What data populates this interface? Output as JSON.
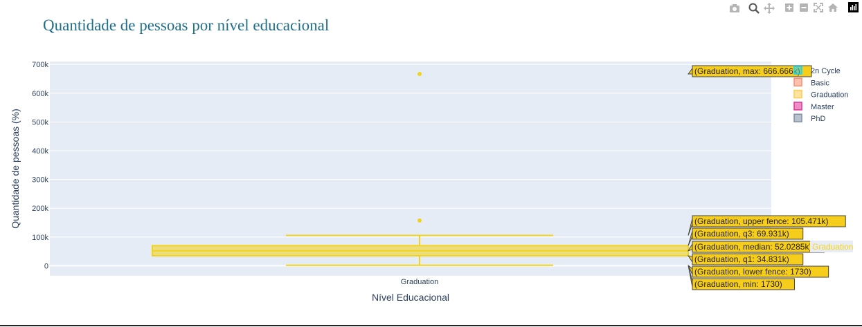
{
  "chart_data": {
    "type": "box",
    "title": "Quantidade de pessoas por nível educacional",
    "xlabel": "Nível Educacional",
    "ylabel": "Quantidade de pessoas (%)",
    "y_range": [
      -35000,
      710000
    ],
    "y_ticks": [
      0,
      100000,
      200000,
      300000,
      400000,
      500000,
      600000,
      700000
    ],
    "y_tick_labels": [
      "0",
      "100k",
      "200k",
      "300k",
      "400k",
      "500k",
      "600k",
      "700k"
    ],
    "categories": [
      "Graduation"
    ],
    "grid": true,
    "legend_position": "top-right",
    "legend": [
      {
        "name": "2n Cycle",
        "color": "#19d3f3"
      },
      {
        "name": "Basic",
        "color": "#fd8e70"
      },
      {
        "name": "Graduation",
        "color": "#fecb52"
      },
      {
        "name": "Master",
        "color": "#e0339a"
      },
      {
        "name": "PhD",
        "color": "#7e90a6"
      }
    ],
    "series": [
      {
        "name": "Graduation",
        "category": "Graduation",
        "color": "#f2d31a",
        "min": 1730,
        "lower_fence": 1730,
        "q1": 34831,
        "median": 52028.5,
        "q3": 69931,
        "upper_fence": 105471,
        "max": 666666,
        "outliers": [
          157146,
          666666
        ]
      }
    ],
    "hover_labels": [
      {
        "text": "(Graduation, max: 666.666k)",
        "value": 666666
      },
      {
        "text": "(Graduation, upper fence: 105.471k)",
        "value": 105471
      },
      {
        "text": "(Graduation, q3: 69.931k)",
        "value": 69931
      },
      {
        "text": "(Graduation, median: 52.0285k)",
        "value": 52028.5
      },
      {
        "text": "(Graduation, q1: 34.831k)",
        "value": 34831
      },
      {
        "text": "(Graduation, lower fence: 1730)",
        "value": 1730
      },
      {
        "text": "(Graduation, min: 1730)",
        "value": 1730
      }
    ],
    "hover_trace_label": "Graduation"
  },
  "toolbar": {
    "icons": [
      "camera-icon",
      "zoom-icon",
      "pan-icon",
      "zoom-in-icon",
      "zoom-out-icon",
      "autoscale-icon",
      "home-icon",
      "plotly-logo-icon"
    ]
  }
}
